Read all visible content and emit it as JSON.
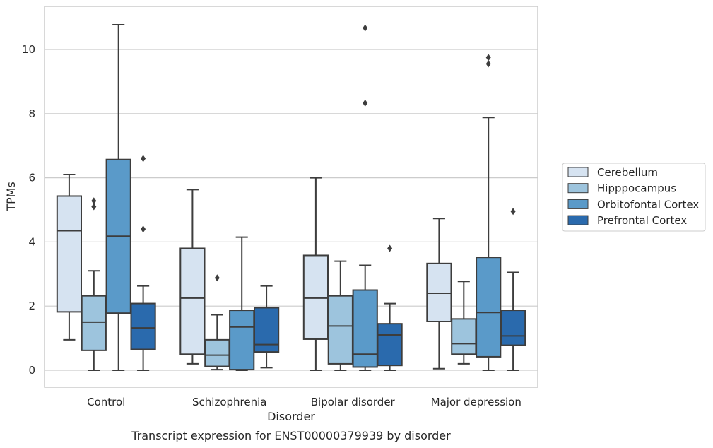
{
  "chart_data": {
    "type": "box",
    "caption": "Transcript expression for ENST00000379939 by disorder",
    "xlabel": "Disorder",
    "ylabel": "TPMs",
    "ylim": [
      -0.5,
      11.35
    ],
    "yticks": [
      0,
      2,
      4,
      6,
      8,
      10
    ],
    "grid": "horizontal",
    "legend_position": "right",
    "categories": [
      "Control",
      "Schizophrenia",
      "Bipolar disorder",
      "Major depression"
    ],
    "series": [
      {
        "name": "Cerebellum",
        "color": "#d6e3f1",
        "boxes": [
          {
            "whislo": 0.95,
            "q1": 1.82,
            "med": 4.35,
            "q3": 5.43,
            "whishi": 6.1,
            "fliers": []
          },
          {
            "whislo": 0.2,
            "q1": 0.5,
            "med": 2.25,
            "q3": 3.8,
            "whishi": 5.63,
            "fliers": []
          },
          {
            "whislo": 0.0,
            "q1": 0.97,
            "med": 2.25,
            "q3": 3.58,
            "whishi": 6.0,
            "fliers": []
          },
          {
            "whislo": 0.05,
            "q1": 1.52,
            "med": 2.4,
            "q3": 3.33,
            "whishi": 4.73,
            "fliers": []
          }
        ]
      },
      {
        "name": "Hipppocampus",
        "color": "#9dc4dd",
        "boxes": [
          {
            "whislo": 0.0,
            "q1": 0.62,
            "med": 1.5,
            "q3": 2.32,
            "whishi": 3.1,
            "fliers": [
              5.1,
              5.28
            ]
          },
          {
            "whislo": 0.02,
            "q1": 0.12,
            "med": 0.47,
            "q3": 0.95,
            "whishi": 1.73,
            "fliers": [
              2.88
            ]
          },
          {
            "whislo": 0.0,
            "q1": 0.2,
            "med": 1.38,
            "q3": 2.32,
            "whishi": 3.4,
            "fliers": []
          },
          {
            "whislo": 0.2,
            "q1": 0.5,
            "med": 0.83,
            "q3": 1.6,
            "whishi": 2.77,
            "fliers": []
          }
        ]
      },
      {
        "name": "Orbitofontal Cortex",
        "color": "#5a9ac9",
        "boxes": [
          {
            "whislo": 0.0,
            "q1": 1.78,
            "med": 4.18,
            "q3": 6.57,
            "whishi": 10.77,
            "fliers": []
          },
          {
            "whislo": 0.0,
            "q1": 0.02,
            "med": 1.35,
            "q3": 1.87,
            "whishi": 4.15,
            "fliers": []
          },
          {
            "whislo": 0.0,
            "q1": 0.1,
            "med": 0.5,
            "q3": 2.5,
            "whishi": 3.27,
            "fliers": [
              8.33,
              10.67
            ]
          },
          {
            "whislo": 0.0,
            "q1": 0.42,
            "med": 1.8,
            "q3": 3.52,
            "whishi": 7.88,
            "fliers": [
              9.55,
              9.75
            ]
          }
        ]
      },
      {
        "name": "Prefrontal Cortex",
        "color": "#2a6aad",
        "boxes": [
          {
            "whislo": 0.0,
            "q1": 0.65,
            "med": 1.32,
            "q3": 2.08,
            "whishi": 2.63,
            "fliers": [
              4.4,
              6.6
            ]
          },
          {
            "whislo": 0.08,
            "q1": 0.57,
            "med": 0.8,
            "q3": 1.95,
            "whishi": 2.63,
            "fliers": []
          },
          {
            "whislo": 0.0,
            "q1": 0.15,
            "med": 1.1,
            "q3": 1.45,
            "whishi": 2.08,
            "fliers": [
              3.8
            ]
          },
          {
            "whislo": 0.0,
            "q1": 0.78,
            "med": 1.07,
            "q3": 1.87,
            "whishi": 3.05,
            "fliers": [
              4.95
            ]
          }
        ]
      }
    ]
  }
}
